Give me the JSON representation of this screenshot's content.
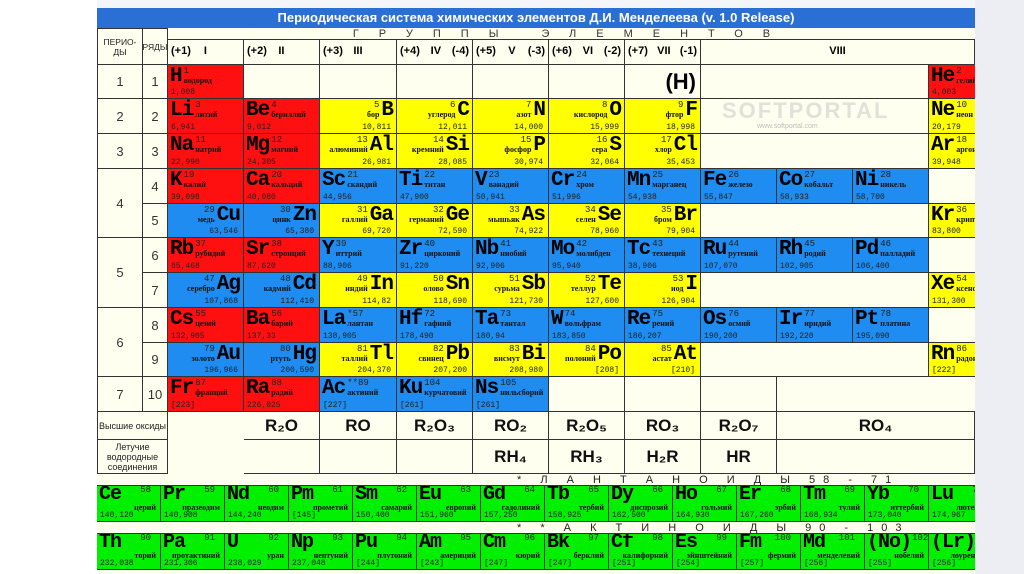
{
  "title": "Периодическая система химических элементов Д.И. Менделеева (v. 1.0 Release)",
  "headers": {
    "periods": "ПЕРИО-ДЫ",
    "rows": "РЯДЫ",
    "groups": "ГРУППЫ ЭЛЕМЕНТОВ"
  },
  "groups": [
    {
      "pos": "(+1)",
      "roman": "I",
      "neg": ""
    },
    {
      "pos": "(+2)",
      "roman": "II",
      "neg": ""
    },
    {
      "pos": "(+3)",
      "roman": "III",
      "neg": ""
    },
    {
      "pos": "(+4)",
      "roman": "IV",
      "neg": "(-4)"
    },
    {
      "pos": "(+5)",
      "roman": "V",
      "neg": "(-3)"
    },
    {
      "pos": "(+6)",
      "roman": "VI",
      "neg": "(-2)"
    },
    {
      "pos": "(+7)",
      "roman": "VII",
      "neg": "(-1)"
    },
    {
      "pos": "",
      "roman": "VIII",
      "neg": ""
    }
  ],
  "periods": [
    "1",
    "2",
    "3",
    "4",
    "5",
    "6",
    "7"
  ],
  "row_numbers": [
    "1",
    "2",
    "3",
    "4",
    "5",
    "6",
    "7",
    "8",
    "9",
    "10"
  ],
  "colors": {
    "r": "#ff1010",
    "y": "#ffff00",
    "b": "#1e8cf0",
    "g": "#00f000",
    "bg": "#fffff0",
    "title": "#2a6fd3"
  },
  "table": [
    [
      [
        "H",
        "водород",
        "1",
        "1,008",
        "r",
        "L"
      ],
      null,
      null,
      null,
      null,
      null,
      [
        "(H)"
      ],
      null,
      null,
      null,
      [
        "He",
        "гелий",
        "2",
        "4,003",
        "r",
        "L"
      ]
    ],
    [
      [
        "Li",
        "литий",
        "3",
        "6,941",
        "r",
        "L"
      ],
      [
        "Be",
        "бериллий",
        "4",
        "9,012",
        "r",
        "L"
      ],
      [
        "B",
        "бор",
        "5",
        "10,811",
        "y",
        "R"
      ],
      [
        "C",
        "углерод",
        "6",
        "12,011",
        "y",
        "R"
      ],
      [
        "N",
        "азот",
        "7",
        "14,000",
        "y",
        "R"
      ],
      [
        "O",
        "кислород",
        "8",
        "15,999",
        "y",
        "R"
      ],
      [
        "F",
        "фтор",
        "9",
        "18,998",
        "y",
        "R"
      ],
      null,
      null,
      null,
      [
        "Ne",
        "неон",
        "10",
        "20,179",
        "y",
        "L"
      ]
    ],
    [
      [
        "Na",
        "натрий",
        "11",
        "22,990",
        "r",
        "L"
      ],
      [
        "Mg",
        "магний",
        "12",
        "24,305",
        "r",
        "L"
      ],
      [
        "Al",
        "алюминий",
        "13",
        "26,981",
        "y",
        "R"
      ],
      [
        "Si",
        "кремний",
        "14",
        "28,085",
        "y",
        "R"
      ],
      [
        "P",
        "фосфор",
        "15",
        "30,974",
        "y",
        "R"
      ],
      [
        "S",
        "сера",
        "16",
        "32,064",
        "y",
        "R"
      ],
      [
        "Cl",
        "хлор",
        "17",
        "35,453",
        "y",
        "R"
      ],
      null,
      null,
      null,
      [
        "Ar",
        "аргон",
        "18",
        "39,948",
        "y",
        "L"
      ]
    ],
    [
      [
        "K",
        "калий",
        "19",
        "39,098",
        "r",
        "L"
      ],
      [
        "Ca",
        "кальций",
        "20",
        "40,080",
        "r",
        "L"
      ],
      [
        "Sc",
        "скандий",
        "21",
        "44,956",
        "b",
        "L"
      ],
      [
        "Ti",
        "титан",
        "22",
        "47,900",
        "b",
        "L"
      ],
      [
        "V",
        "ванадий",
        "23",
        "50,941",
        "b",
        "L"
      ],
      [
        "Cr",
        "хром",
        "24",
        "51,996",
        "b",
        "L"
      ],
      [
        "Mn",
        "марганец",
        "25",
        "54,938",
        "b",
        "L"
      ],
      [
        "Fe",
        "железо",
        "26",
        "55,847",
        "b",
        "L"
      ],
      [
        "Co",
        "кобальт",
        "27",
        "58,933",
        "b",
        "L"
      ],
      [
        "Ni",
        "никель",
        "28",
        "58,700",
        "b",
        "L"
      ],
      null
    ],
    [
      [
        "Cu",
        "медь",
        "29",
        "63,546",
        "b",
        "R"
      ],
      [
        "Zn",
        "цинк",
        "30",
        "65,380",
        "b",
        "R"
      ],
      [
        "Ga",
        "галлий",
        "31",
        "69,720",
        "y",
        "R"
      ],
      [
        "Ge",
        "германий",
        "32",
        "72,590",
        "y",
        "R"
      ],
      [
        "As",
        "мышьяк",
        "33",
        "74,922",
        "y",
        "R"
      ],
      [
        "Se",
        "селен",
        "34",
        "78,960",
        "y",
        "R"
      ],
      [
        "Br",
        "бром",
        "35",
        "79,904",
        "y",
        "R"
      ],
      null,
      null,
      null,
      [
        "Kr",
        "криптон",
        "36",
        "83,800",
        "y",
        "L"
      ]
    ],
    [
      [
        "Rb",
        "рубидий",
        "37",
        "85,468",
        "r",
        "L"
      ],
      [
        "Sr",
        "стронций",
        "38",
        "87,620",
        "r",
        "L"
      ],
      [
        "Y",
        "иттрий",
        "39",
        "88,906",
        "b",
        "L"
      ],
      [
        "Zr",
        "цирконий",
        "40",
        "91,220",
        "b",
        "L"
      ],
      [
        "Nb",
        "ниобий",
        "41",
        "92,906",
        "b",
        "L"
      ],
      [
        "Mo",
        "молибден",
        "42",
        "95,940",
        "b",
        "L"
      ],
      [
        "Tc",
        "технеций",
        "43",
        "38,906",
        "b",
        "L"
      ],
      [
        "Ru",
        "рутений",
        "44",
        "107,070",
        "b",
        "L"
      ],
      [
        "Rh",
        "родий",
        "45",
        "102,905",
        "b",
        "L"
      ],
      [
        "Pd",
        "палладий",
        "46",
        "106,400",
        "b",
        "L"
      ],
      null
    ],
    [
      [
        "Ag",
        "серебро",
        "47",
        "107,868",
        "b",
        "R"
      ],
      [
        "Cd",
        "кадмий",
        "48",
        "112,410",
        "b",
        "R"
      ],
      [
        "In",
        "индий",
        "49",
        "114,82",
        "y",
        "R"
      ],
      [
        "Sn",
        "олово",
        "50",
        "118,690",
        "y",
        "R"
      ],
      [
        "Sb",
        "сурьма",
        "51",
        "121,730",
        "y",
        "R"
      ],
      [
        "Te",
        "теллур",
        "52",
        "127,600",
        "y",
        "R"
      ],
      [
        "I",
        "иод",
        "53",
        "126,904",
        "y",
        "R"
      ],
      null,
      null,
      null,
      [
        "Xe",
        "ксенон",
        "54",
        "131,300",
        "y",
        "L"
      ]
    ],
    [
      [
        "Cs",
        "цезий",
        "55",
        "132,905",
        "r",
        "L"
      ],
      [
        "Ba",
        "барий",
        "56",
        "137,33",
        "r",
        "L"
      ],
      [
        "La",
        "лантан",
        "*57",
        "138,905",
        "b",
        "L"
      ],
      [
        "Hf",
        "гафний",
        "72",
        "178,490",
        "b",
        "L"
      ],
      [
        "Ta",
        "тантал",
        "73",
        "180,94",
        "b",
        "L"
      ],
      [
        "W",
        "вольфрам",
        "74",
        "183,850",
        "b",
        "L"
      ],
      [
        "Re",
        "рений",
        "75",
        "186,207",
        "b",
        "L"
      ],
      [
        "Os",
        "осмий",
        "76",
        "190,200",
        "b",
        "L"
      ],
      [
        "Ir",
        "иридий",
        "77",
        "192,220",
        "b",
        "L"
      ],
      [
        "Pt",
        "платина",
        "78",
        "195,090",
        "b",
        "L"
      ],
      null
    ],
    [
      [
        "Au",
        "золото",
        "79",
        "196,966",
        "b",
        "R"
      ],
      [
        "Hg",
        "ртуть",
        "80",
        "200,590",
        "b",
        "R"
      ],
      [
        "Tl",
        "таллий",
        "81",
        "204,370",
        "y",
        "R"
      ],
      [
        "Pb",
        "свинец",
        "82",
        "207,200",
        "y",
        "R"
      ],
      [
        "Bi",
        "висмут",
        "83",
        "208,980",
        "y",
        "R"
      ],
      [
        "Po",
        "полоний",
        "84",
        "[208]",
        "y",
        "R"
      ],
      [
        "At",
        "астат",
        "85",
        "[210]",
        "y",
        "R"
      ],
      null,
      null,
      null,
      [
        "Rn",
        "радон",
        "86",
        "[222]",
        "y",
        "L"
      ]
    ],
    [
      [
        "Fr",
        "франций",
        "87",
        "[223]",
        "r",
        "L"
      ],
      [
        "Ra",
        "радий",
        "88",
        "226,025",
        "r",
        "L"
      ],
      [
        "Ac",
        "актиний",
        "**89",
        "[227]",
        "b",
        "L"
      ],
      [
        "Ku",
        "курчатовий",
        "104",
        "[261]",
        "b",
        "L"
      ],
      [
        "Ns",
        "нильсборий",
        "105",
        "[261]",
        "b",
        "L"
      ],
      null,
      null,
      null,
      null,
      null,
      null
    ]
  ],
  "oxides": {
    "label": "Высшие оксиды",
    "items": [
      "R₂O",
      "RO",
      "R₂O₃",
      "RO₂",
      "R₂O₅",
      "RO₃",
      "R₂O₇",
      "RO₄"
    ]
  },
  "hydrides": {
    "label": "Летучие водородные соединения",
    "items": [
      "",
      "",
      "",
      "RH₄",
      "RH₃",
      "H₂R",
      "HR",
      ""
    ]
  },
  "lanthanides": {
    "label": "* Л А Н Т А Н О И Д Ы 58 - 71",
    "items": [
      [
        "Ce",
        "церий",
        "58",
        "140,120"
      ],
      [
        "Pr",
        "празеодим",
        "59",
        "140,908"
      ],
      [
        "Nd",
        "неодим",
        "60",
        "144,240"
      ],
      [
        "Pm",
        "прометий",
        "61",
        "[145]"
      ],
      [
        "Sm",
        "самарий",
        "62",
        "150,400"
      ],
      [
        "Eu",
        "европий",
        "63",
        "151,960"
      ],
      [
        "Gd",
        "гадолиний",
        "64",
        "157,250"
      ],
      [
        "Tb",
        "тербий",
        "65",
        "158,925"
      ],
      [
        "Dy",
        "диспрозий",
        "66",
        "162,500"
      ],
      [
        "Ho",
        "гольмий",
        "67",
        "164,930"
      ],
      [
        "Er",
        "эрбий",
        "68",
        "167,260"
      ],
      [
        "Tm",
        "тулий",
        "69",
        "168,934"
      ],
      [
        "Yb",
        "иттербий",
        "70",
        "173,040"
      ],
      [
        "Lu",
        "лютеций",
        "71",
        "174,967"
      ]
    ]
  },
  "actinides": {
    "label": "* * А К Т И Н О И Д Ы 90 - 103",
    "items": [
      [
        "Th",
        "торий",
        "90",
        "232,038"
      ],
      [
        "Pa",
        "протактиний",
        "91",
        "231,306"
      ],
      [
        "U",
        "уран",
        "92",
        "238,029"
      ],
      [
        "Np",
        "нептуний",
        "93",
        "237,048"
      ],
      [
        "Pu",
        "плутоний",
        "94",
        "[244]"
      ],
      [
        "Am",
        "америций",
        "95",
        "[243]"
      ],
      [
        "Cm",
        "кюрий",
        "96",
        "[247]"
      ],
      [
        "Bk",
        "берклий",
        "97",
        "[247]"
      ],
      [
        "Cf",
        "калифорний",
        "98",
        "[251]"
      ],
      [
        "Es",
        "эйнштейний",
        "99",
        "[254]"
      ],
      [
        "Fm",
        "фермий",
        "100",
        "[257]"
      ],
      [
        "Md",
        "менделевий",
        "101",
        "[258]"
      ],
      [
        "(No)",
        "нобелий",
        "102",
        "[255]"
      ],
      [
        "(Lr)",
        "лоуренсий",
        "103",
        "[256]"
      ]
    ]
  },
  "watermark": {
    "logo": "SOFTPORTAL",
    "url": "www.softportal.com"
  }
}
